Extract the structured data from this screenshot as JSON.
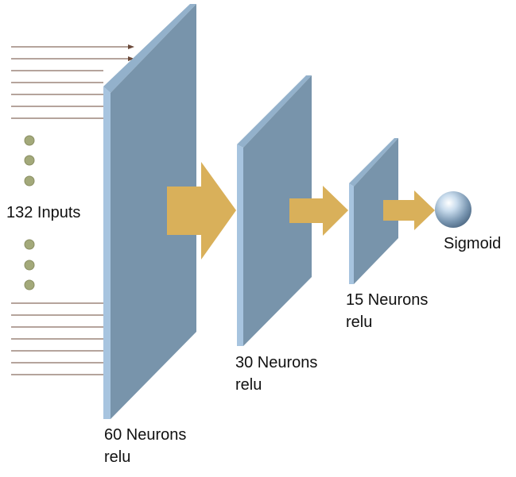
{
  "inputs": {
    "label": "132 Inputs",
    "line_color": "#6b4a3a",
    "dot_color": "#a3a97a",
    "dot_stroke": "#8a8f63"
  },
  "layers": [
    {
      "count_label": "60 Neurons",
      "activation": "relu"
    },
    {
      "count_label": "30 Neurons",
      "activation": "relu"
    },
    {
      "count_label": "15 Neurons",
      "activation": "relu"
    }
  ],
  "output": {
    "label": "Sigmoid"
  },
  "colors": {
    "layer_face": "#7894ab",
    "layer_edge": "#a7c4df",
    "layer_top": "#93b1cb",
    "arrow": "#d9b05a"
  }
}
